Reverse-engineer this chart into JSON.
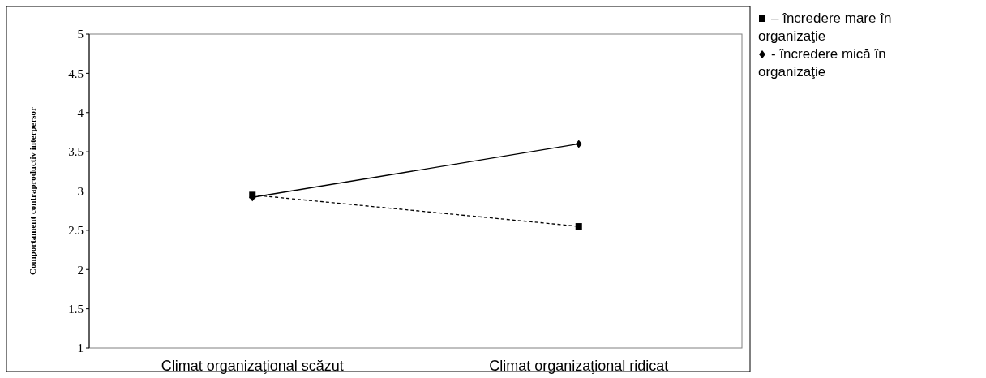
{
  "chart_data": {
    "type": "line",
    "ylabel": "Comportament contraproductiv interpersor",
    "categories": [
      "Climat organizaţional scăzut",
      "Climat organizaţional ridicat"
    ],
    "ylim": [
      1,
      5
    ],
    "yticks": [
      1,
      1.5,
      2,
      2.5,
      3,
      3.5,
      4,
      4.5,
      5
    ],
    "grid": false,
    "legend": "top right",
    "series": [
      {
        "name": "– încredere mare în organizaţie",
        "color": "#000000",
        "values": [
          2.95,
          2.55
        ],
        "marker": "square",
        "line_style": "dashed"
      },
      {
        "name": "- încredere mică în organizaţie",
        "color": "#000000",
        "values": [
          2.92,
          3.6
        ],
        "marker": "diamond",
        "line_style": "solid"
      }
    ]
  }
}
